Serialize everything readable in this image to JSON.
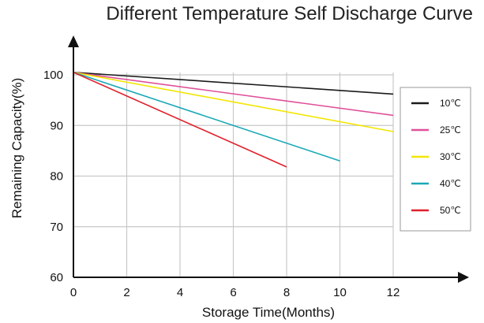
{
  "chart_data": {
    "type": "line",
    "title": "Different Temperature Self Discharge Curve",
    "xlabel": "Storage Time(Months)",
    "ylabel": "Remaining Capacity(%)",
    "xlim": [
      0,
      12
    ],
    "ylim": [
      60,
      100
    ],
    "x_ticks": [
      "0",
      "2",
      "4",
      "6",
      "8",
      "10",
      "12"
    ],
    "y_ticks": [
      "60",
      "70",
      "80",
      "90",
      "100"
    ],
    "grid": true,
    "legend_position": "right",
    "series": [
      {
        "name": "10℃",
        "color": "#1a1a1a",
        "x": [
          0,
          12
        ],
        "y": [
          100.5,
          96.2
        ]
      },
      {
        "name": "25℃",
        "color": "#e0509a",
        "x": [
          0,
          12
        ],
        "y": [
          100.5,
          92.0
        ]
      },
      {
        "name": "30℃",
        "color": "#f2e600",
        "x": [
          0,
          12
        ],
        "y": [
          100.5,
          88.8
        ]
      },
      {
        "name": "40℃",
        "color": "#1aa8b8",
        "x": [
          0,
          10
        ],
        "y": [
          100.5,
          83.0
        ]
      },
      {
        "name": "50℃",
        "color": "#e0202a",
        "x": [
          0,
          8
        ],
        "y": [
          100.5,
          81.8
        ]
      }
    ]
  }
}
